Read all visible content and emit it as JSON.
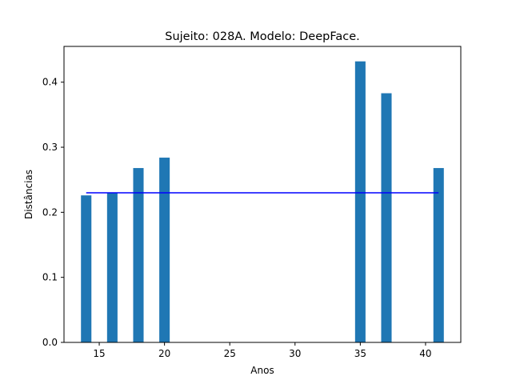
{
  "chart_data": {
    "type": "bar",
    "title": "Sujeito: 028A. Modelo: DeepFace.",
    "xlabel": "Anos",
    "ylabel": "Distâncias",
    "xlim": [
      12.3,
      42.7
    ],
    "ylim": [
      0,
      0.455
    ],
    "xticks": [
      15,
      20,
      25,
      30,
      35,
      40
    ],
    "yticks": [
      0.0,
      0.1,
      0.2,
      0.3,
      0.4
    ],
    "ytick_labels": [
      "0.0",
      "0.1",
      "0.2",
      "0.3",
      "0.4"
    ],
    "bar_width": 0.8,
    "grid": false,
    "bar_color": "#1f77b4",
    "line_color": "#0000ff",
    "series": [
      {
        "type": "bar",
        "x": [
          14,
          16,
          18,
          20,
          35,
          37,
          41
        ],
        "values": [
          0.226,
          0.23,
          0.268,
          0.284,
          0.432,
          0.383,
          0.268
        ]
      },
      {
        "type": "line",
        "x": [
          14,
          41
        ],
        "values": [
          0.23,
          0.23
        ]
      }
    ]
  }
}
